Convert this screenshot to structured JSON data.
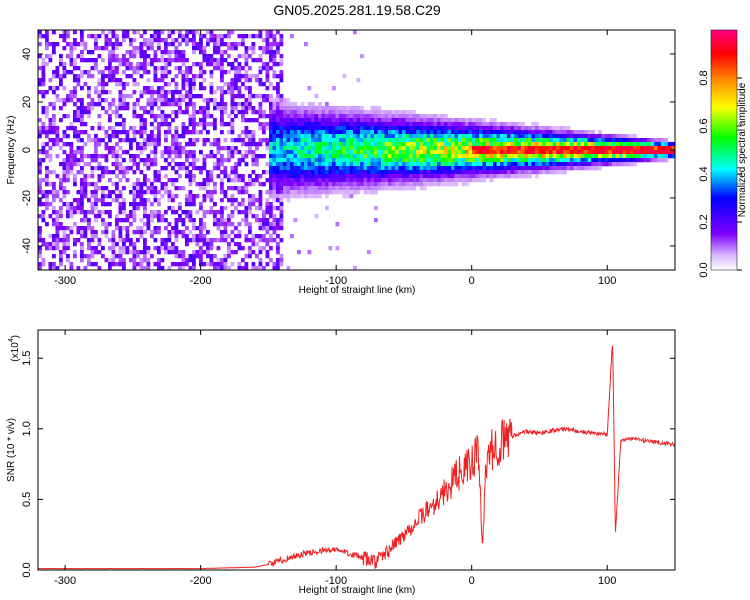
{
  "title": "GN05.2025.281.19.58.C29",
  "chart_data": [
    {
      "type": "heatmap",
      "xlabel": "Height of straight line (km)",
      "ylabel": "Frequency (Hz)",
      "xlim": [
        -320,
        150
      ],
      "ylim": [
        -50,
        50
      ],
      "xticks": [
        -300,
        -200,
        -100,
        0,
        100
      ],
      "xtick_labels": [
        "-300",
        "-200",
        "-100",
        "0",
        "100"
      ],
      "yticks": [
        -40,
        -20,
        0,
        20,
        40
      ],
      "ytick_labels": [
        "-40",
        "-20",
        "0",
        "20",
        "40"
      ],
      "colorbar": {
        "label": "Normalized spectral amplitude",
        "range": [
          0,
          1
        ],
        "ticks": [
          0.0,
          0.2,
          0.4,
          0.6,
          0.8
        ],
        "tick_labels": [
          "0.0",
          "0.2",
          "0.4",
          "0.6",
          "0.8"
        ],
        "colormap": [
          "#ffffff",
          "#8000ff",
          "#0000ff",
          "#00ffff",
          "#00ff00",
          "#ffff00",
          "#ff8000",
          "#ff0000",
          "#ff0080"
        ]
      },
      "features": [
        {
          "name": "broadband noise",
          "x_range": [
            -320,
            -140
          ],
          "amplitude": 0.15
        },
        {
          "name": "signal band",
          "x_range": [
            -150,
            150
          ],
          "center_frequency": 0,
          "amplitude": 0.9
        }
      ]
    },
    {
      "type": "line",
      "xlabel": "Height of straight line (km)",
      "ylabel": "SNR (10 * v/v)",
      "multiplier_label": "(x10",
      "multiplier_exponent": "4",
      "xlim": [
        -320,
        150
      ],
      "ylim": [
        0,
        1.7
      ],
      "xticks": [
        -300,
        -200,
        -100,
        0,
        100
      ],
      "xtick_labels": [
        "-300",
        "-200",
        "-100",
        "0",
        "100"
      ],
      "yticks": [
        0.0,
        0.5,
        1.0,
        1.5
      ],
      "ytick_labels": [
        "0.0",
        "0.5",
        "1.0",
        "1.5"
      ],
      "color": "#ee2222",
      "series": [
        {
          "x": [
            -320,
            -250,
            -200,
            -160,
            -150,
            -140,
            -130,
            -120,
            -110,
            -100,
            -90,
            -80,
            -70,
            -60,
            -50,
            -40,
            -30,
            -20,
            -10,
            0,
            5,
            8,
            10,
            15,
            20,
            30,
            40,
            50,
            60,
            70,
            80,
            90,
            100,
            102,
            104,
            106,
            110,
            120,
            130,
            140,
            150
          ],
          "y": [
            0.01,
            0.01,
            0.01,
            0.02,
            0.04,
            0.07,
            0.1,
            0.12,
            0.14,
            0.14,
            0.12,
            0.08,
            0.06,
            0.15,
            0.25,
            0.35,
            0.45,
            0.55,
            0.68,
            0.75,
            0.85,
            0.1,
            0.7,
            0.85,
            0.9,
            0.95,
            0.98,
            0.97,
            0.99,
            1.0,
            0.98,
            0.97,
            0.96,
            1.3,
            1.65,
            0.25,
            0.92,
            0.93,
            0.91,
            0.9,
            0.89
          ]
        }
      ]
    }
  ]
}
